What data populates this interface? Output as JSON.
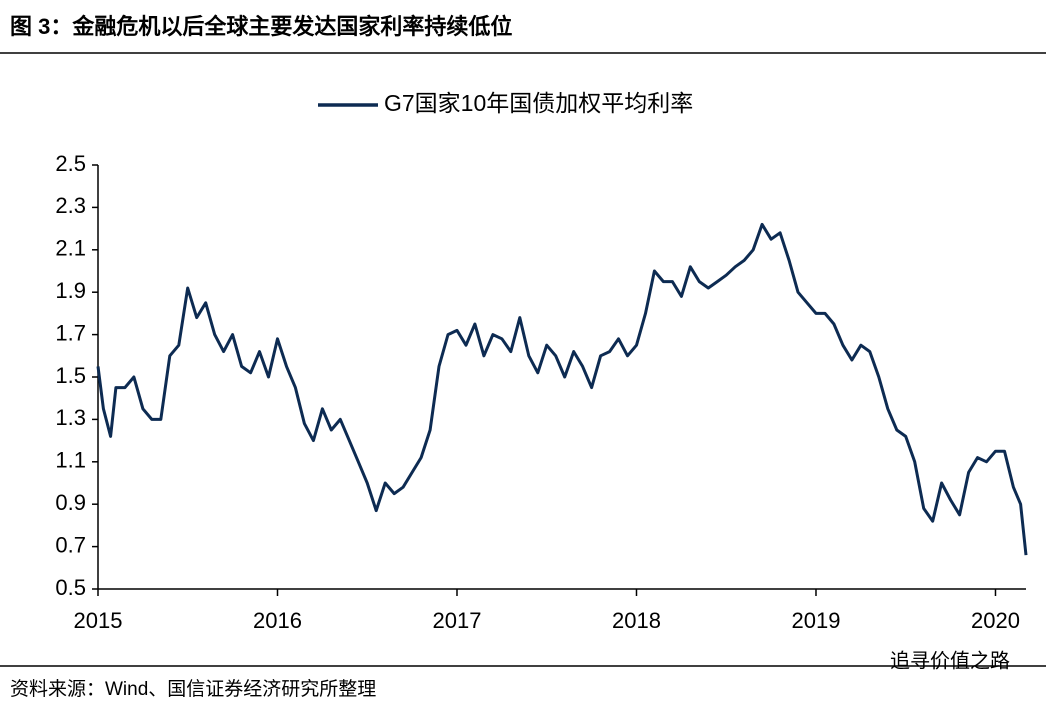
{
  "chart_data": {
    "type": "line",
    "title": "图 3：金融危机以后全球主要发达国家利率持续低位",
    "source": "资料来源：Wind、国信证券经济研究所整理",
    "watermark": "追寻价值之路",
    "legend": "top",
    "grid": false,
    "x": [
      2015.0,
      2015.03,
      2015.07,
      2015.1,
      2015.15,
      2015.2,
      2015.25,
      2015.3,
      2015.35,
      2015.4,
      2015.45,
      2015.5,
      2015.55,
      2015.6,
      2015.65,
      2015.7,
      2015.75,
      2015.8,
      2015.85,
      2015.9,
      2015.95,
      2016.0,
      2016.05,
      2016.1,
      2016.15,
      2016.2,
      2016.25,
      2016.3,
      2016.35,
      2016.4,
      2016.45,
      2016.5,
      2016.55,
      2016.6,
      2016.65,
      2016.7,
      2016.75,
      2016.8,
      2016.85,
      2016.9,
      2016.95,
      2017.0,
      2017.05,
      2017.1,
      2017.15,
      2017.2,
      2017.25,
      2017.3,
      2017.35,
      2017.4,
      2017.45,
      2017.5,
      2017.55,
      2017.6,
      2017.65,
      2017.7,
      2017.75,
      2017.8,
      2017.85,
      2017.9,
      2017.95,
      2018.0,
      2018.05,
      2018.1,
      2018.15,
      2018.2,
      2018.25,
      2018.3,
      2018.35,
      2018.4,
      2018.45,
      2018.5,
      2018.55,
      2018.6,
      2018.65,
      2018.7,
      2018.75,
      2018.8,
      2018.85,
      2018.9,
      2018.95,
      2019.0,
      2019.05,
      2019.1,
      2019.15,
      2019.2,
      2019.25,
      2019.3,
      2019.35,
      2019.4,
      2019.45,
      2019.5,
      2019.55,
      2019.6,
      2019.65,
      2019.7,
      2019.75,
      2019.8,
      2019.85,
      2019.9,
      2019.95,
      2020.0,
      2020.05,
      2020.1,
      2020.14,
      2020.17
    ],
    "series": [
      {
        "name": "G7国家10年国债加权平均利率",
        "color": "#0d2b52",
        "values": [
          1.55,
          1.35,
          1.22,
          1.45,
          1.45,
          1.5,
          1.35,
          1.3,
          1.3,
          1.6,
          1.65,
          1.92,
          1.78,
          1.85,
          1.7,
          1.62,
          1.7,
          1.55,
          1.52,
          1.62,
          1.5,
          1.68,
          1.55,
          1.45,
          1.28,
          1.2,
          1.35,
          1.25,
          1.3,
          1.2,
          1.1,
          1.0,
          0.87,
          1.0,
          0.95,
          0.98,
          1.05,
          1.12,
          1.25,
          1.55,
          1.7,
          1.72,
          1.65,
          1.75,
          1.6,
          1.7,
          1.68,
          1.62,
          1.78,
          1.6,
          1.52,
          1.65,
          1.6,
          1.5,
          1.62,
          1.55,
          1.45,
          1.6,
          1.62,
          1.68,
          1.6,
          1.65,
          1.8,
          2.0,
          1.95,
          1.95,
          1.88,
          2.02,
          1.95,
          1.92,
          1.95,
          1.98,
          2.02,
          2.05,
          2.1,
          2.22,
          2.15,
          2.18,
          2.05,
          1.9,
          1.85,
          1.8,
          1.8,
          1.75,
          1.65,
          1.58,
          1.65,
          1.62,
          1.5,
          1.35,
          1.25,
          1.22,
          1.1,
          0.88,
          0.82,
          1.0,
          0.92,
          0.85,
          1.05,
          1.12,
          1.1,
          1.15,
          1.15,
          0.98,
          0.9,
          0.66
        ]
      }
    ],
    "xlim": [
      2015,
      2020.17
    ],
    "xticks": [
      2015,
      2016,
      2017,
      2018,
      2019,
      2020
    ],
    "ylim": [
      0.5,
      2.5
    ],
    "yticks": [
      0.5,
      0.7,
      0.9,
      1.1,
      1.3,
      1.5,
      1.7,
      1.9,
      2.1,
      2.3,
      2.5
    ]
  }
}
